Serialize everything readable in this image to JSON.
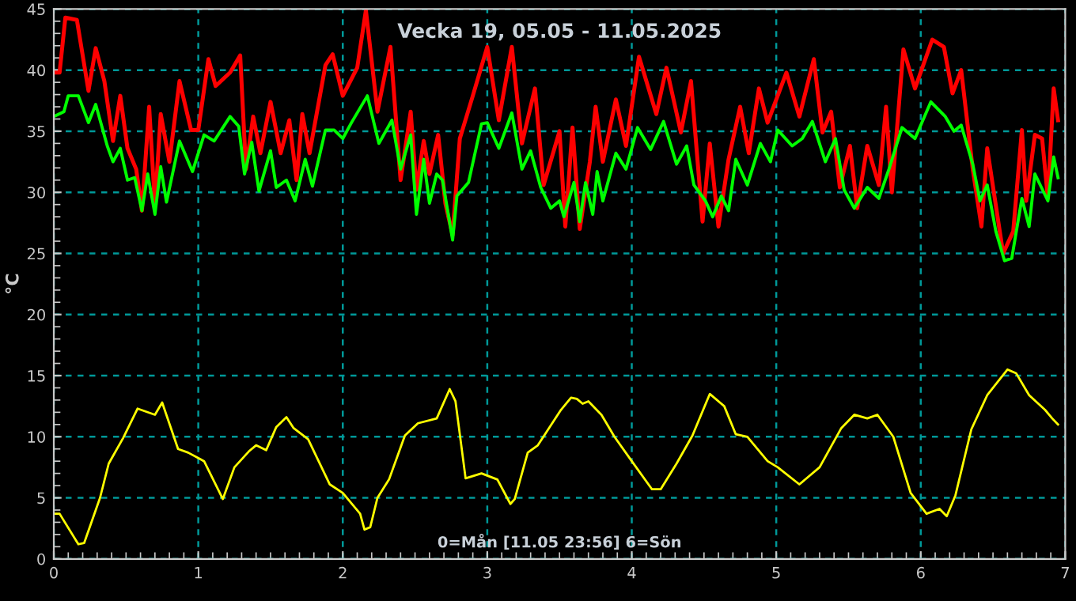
{
  "chart_data": {
    "type": "line",
    "title": "Vecka 19, 05.05 - 11.05.2025",
    "ylabel": "°C",
    "annotations": [
      "0=Mån [11.05 23:56] 6=Sön"
    ],
    "xlim": [
      0,
      7
    ],
    "ylim": [
      0,
      45
    ],
    "xticks": [
      0,
      1,
      2,
      3,
      4,
      5,
      6,
      7
    ],
    "yticks": [
      0,
      5,
      10,
      15,
      20,
      25,
      30,
      35,
      40,
      45
    ],
    "grid": true,
    "marker": "none",
    "line_style": "solid",
    "series": [
      {
        "color": "#ff0000",
        "x": [
          0,
          0.04,
          0.08,
          0.16,
          0.24,
          0.29,
          0.35,
          0.41,
          0.46,
          0.51,
          0.57,
          0.61,
          0.66,
          0.7,
          0.74,
          0.8,
          0.87,
          0.95,
          1.0,
          1.07,
          1.12,
          1.22,
          1.29,
          1.33,
          1.38,
          1.43,
          1.5,
          1.57,
          1.63,
          1.68,
          1.72,
          1.77,
          1.88,
          1.93,
          2.0,
          2.1,
          2.16,
          2.24,
          2.33,
          2.4,
          2.47,
          2.51,
          2.56,
          2.6,
          2.66,
          2.71,
          2.76,
          2.81,
          2.9,
          3.0,
          3.08,
          3.17,
          3.24,
          3.33,
          3.39,
          3.5,
          3.54,
          3.59,
          3.64,
          3.71,
          3.75,
          3.8,
          3.89,
          3.96,
          4.05,
          4.17,
          4.24,
          4.34,
          4.41,
          4.49,
          4.54,
          4.6,
          4.67,
          4.75,
          4.81,
          4.88,
          4.94,
          5.07,
          5.16,
          5.26,
          5.32,
          5.38,
          5.44,
          5.51,
          5.56,
          5.63,
          5.71,
          5.76,
          5.8,
          5.88,
          5.96,
          6.08,
          6.16,
          6.22,
          6.28,
          6.36,
          6.42,
          6.46,
          6.57,
          6.64,
          6.7,
          6.73,
          6.79,
          6.84,
          6.88,
          6.92,
          6.95
        ],
        "values": [
          39.8,
          39.8,
          44.3,
          44.1,
          38.3,
          41.8,
          39.1,
          34.2,
          37.9,
          33.6,
          31.9,
          28.5,
          37.0,
          28.9,
          36.4,
          32.5,
          39.1,
          35.1,
          35.1,
          40.9,
          38.7,
          39.8,
          41.2,
          31.9,
          36.2,
          33.2,
          37.4,
          33.2,
          35.9,
          31.0,
          36.4,
          33.2,
          40.4,
          41.3,
          37.9,
          40.2,
          44.9,
          36.6,
          41.9,
          31.0,
          36.6,
          30.2,
          34.2,
          31.5,
          34.7,
          29.1,
          26.5,
          34.4,
          37.9,
          41.9,
          35.9,
          41.9,
          34.0,
          38.5,
          30.6,
          35.0,
          27.2,
          35.3,
          27.0,
          32.5,
          37.0,
          32.5,
          37.6,
          33.8,
          41.1,
          36.4,
          40.2,
          34.9,
          39.1,
          27.6,
          34.0,
          27.2,
          32.7,
          37.0,
          33.2,
          38.5,
          35.7,
          39.8,
          36.2,
          40.9,
          34.9,
          36.6,
          30.4,
          33.8,
          28.7,
          33.8,
          30.6,
          37.0,
          30.0,
          41.7,
          38.5,
          42.5,
          41.9,
          38.1,
          40.0,
          31.9,
          27.2,
          33.6,
          25.0,
          26.8,
          35.1,
          29.3,
          34.7,
          34.4,
          29.5,
          38.5,
          35.9
        ]
      },
      {
        "color": "#00ff00",
        "x": [
          0,
          0.07,
          0.1,
          0.17,
          0.24,
          0.29,
          0.37,
          0.41,
          0.46,
          0.51,
          0.56,
          0.61,
          0.65,
          0.7,
          0.74,
          0.78,
          0.87,
          0.96,
          1.04,
          1.11,
          1.22,
          1.28,
          1.32,
          1.37,
          1.42,
          1.5,
          1.54,
          1.61,
          1.67,
          1.74,
          1.79,
          1.88,
          1.94,
          2.0,
          2.06,
          2.17,
          2.25,
          2.34,
          2.4,
          2.47,
          2.51,
          2.56,
          2.6,
          2.65,
          2.69,
          2.76,
          2.79,
          2.87,
          2.96,
          3.0,
          3.08,
          3.17,
          3.24,
          3.3,
          3.37,
          3.44,
          3.5,
          3.53,
          3.6,
          3.64,
          3.68,
          3.73,
          3.76,
          3.8,
          3.89,
          3.96,
          4.04,
          4.13,
          4.22,
          4.31,
          4.38,
          4.43,
          4.51,
          4.56,
          4.62,
          4.67,
          4.72,
          4.8,
          4.89,
          4.96,
          5.01,
          5.11,
          5.18,
          5.25,
          5.34,
          5.41,
          5.47,
          5.54,
          5.63,
          5.71,
          5.78,
          5.87,
          5.96,
          6.07,
          6.17,
          6.23,
          6.28,
          6.36,
          6.41,
          6.46,
          6.52,
          6.58,
          6.63,
          6.7,
          6.75,
          6.79,
          6.88,
          6.92,
          6.95
        ],
        "values": [
          36.2,
          36.6,
          37.9,
          37.9,
          35.7,
          37.2,
          33.8,
          32.5,
          33.6,
          31.0,
          31.2,
          28.5,
          31.5,
          28.2,
          32.1,
          29.2,
          34.2,
          31.7,
          34.7,
          34.2,
          36.2,
          35.4,
          31.5,
          34.1,
          30.1,
          33.4,
          30.4,
          31.0,
          29.3,
          32.7,
          30.5,
          35.1,
          35.1,
          34.4,
          35.7,
          37.9,
          34.0,
          35.9,
          31.9,
          34.7,
          28.2,
          32.7,
          29.1,
          31.5,
          31.0,
          26.1,
          29.7,
          30.8,
          35.6,
          35.7,
          33.6,
          36.5,
          31.9,
          33.4,
          30.4,
          28.7,
          29.3,
          28.0,
          30.8,
          27.6,
          30.8,
          28.2,
          31.7,
          29.3,
          33.2,
          31.9,
          35.3,
          33.5,
          35.8,
          32.3,
          33.8,
          30.6,
          29.3,
          28.0,
          29.7,
          28.5,
          32.7,
          30.6,
          34.0,
          32.5,
          35.1,
          33.8,
          34.4,
          35.8,
          32.5,
          34.4,
          30.2,
          28.7,
          30.4,
          29.5,
          31.9,
          35.3,
          34.4,
          37.4,
          36.2,
          35.0,
          35.5,
          32.3,
          29.3,
          30.6,
          26.8,
          24.4,
          24.6,
          29.5,
          27.2,
          31.5,
          29.3,
          32.9,
          31.2
        ]
      },
      {
        "color": "#ffff00",
        "x": [
          0,
          0.04,
          0.17,
          0.21,
          0.32,
          0.38,
          0.48,
          0.58,
          0.7,
          0.75,
          0.86,
          0.93,
          1.04,
          1.17,
          1.25,
          1.35,
          1.4,
          1.47,
          1.54,
          1.61,
          1.66,
          1.76,
          1.91,
          2.0,
          2.12,
          2.15,
          2.19,
          2.24,
          2.32,
          2.43,
          2.52,
          2.65,
          2.74,
          2.78,
          2.85,
          2.96,
          3.07,
          3.16,
          3.19,
          3.28,
          3.35,
          3.51,
          3.58,
          3.62,
          3.66,
          3.7,
          3.79,
          3.88,
          4.0,
          4.14,
          4.2,
          4.31,
          4.42,
          4.54,
          4.64,
          4.72,
          4.8,
          4.94,
          5.01,
          5.16,
          5.3,
          5.45,
          5.54,
          5.63,
          5.7,
          5.81,
          5.93,
          6.04,
          6.13,
          6.18,
          6.24,
          6.35,
          6.46,
          6.6,
          6.66,
          6.75,
          6.86,
          6.91,
          6.95
        ],
        "values": [
          3.7,
          3.7,
          1.2,
          1.3,
          5.0,
          7.8,
          9.9,
          12.3,
          11.8,
          12.8,
          9.0,
          8.7,
          8.0,
          4.9,
          7.5,
          8.8,
          9.3,
          8.9,
          10.8,
          11.6,
          10.7,
          9.8,
          6.1,
          5.4,
          3.7,
          2.4,
          2.6,
          5.0,
          6.5,
          10.1,
          11.1,
          11.5,
          13.9,
          12.9,
          6.6,
          7.0,
          6.5,
          4.5,
          4.9,
          8.7,
          9.3,
          12.2,
          13.2,
          13.1,
          12.7,
          12.9,
          11.8,
          10.0,
          8.0,
          5.7,
          5.7,
          7.8,
          10.1,
          13.5,
          12.5,
          10.2,
          10.0,
          8.0,
          7.5,
          6.1,
          7.5,
          10.7,
          11.8,
          11.5,
          11.8,
          10.0,
          5.4,
          3.7,
          4.1,
          3.5,
          5.2,
          10.6,
          13.4,
          15.5,
          15.2,
          13.4,
          12.2,
          11.5,
          11.0
        ]
      }
    ]
  }
}
